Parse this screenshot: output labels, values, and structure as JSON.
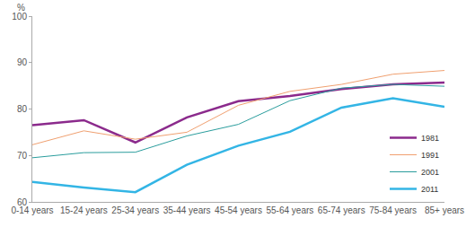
{
  "chart_data": {
    "type": "line",
    "y_label": "%",
    "categories": [
      "0-14 years",
      "15-24 years",
      "25-34 years",
      "35-44 years",
      "45-54 years",
      "55-64 years",
      "65-74 years",
      "75-84 years",
      "85+ years"
    ],
    "series": [
      {
        "name": "1981",
        "color": "#8b2a8c",
        "values": [
          76.5,
          77.6,
          72.8,
          78.2,
          81.7,
          82.8,
          84.3,
          85.3,
          85.7
        ]
      },
      {
        "name": "1991",
        "color": "#f0a070",
        "values": [
          72.3,
          75.3,
          73.5,
          75.0,
          80.8,
          83.8,
          85.3,
          87.5,
          88.3
        ]
      },
      {
        "name": "2001",
        "color": "#2a9d9d",
        "values": [
          69.5,
          70.6,
          70.7,
          74.2,
          76.7,
          81.8,
          84.5,
          85.3,
          84.9
        ]
      },
      {
        "name": "2011",
        "color": "#33b5e5",
        "values": [
          64.3,
          63.1,
          62.1,
          68.0,
          72.1,
          75.1,
          80.3,
          82.3,
          80.5
        ]
      }
    ],
    "ylim": [
      60,
      100
    ],
    "yticks": [
      60,
      70,
      80,
      90,
      100
    ],
    "grid": false,
    "legend": "lower right"
  }
}
